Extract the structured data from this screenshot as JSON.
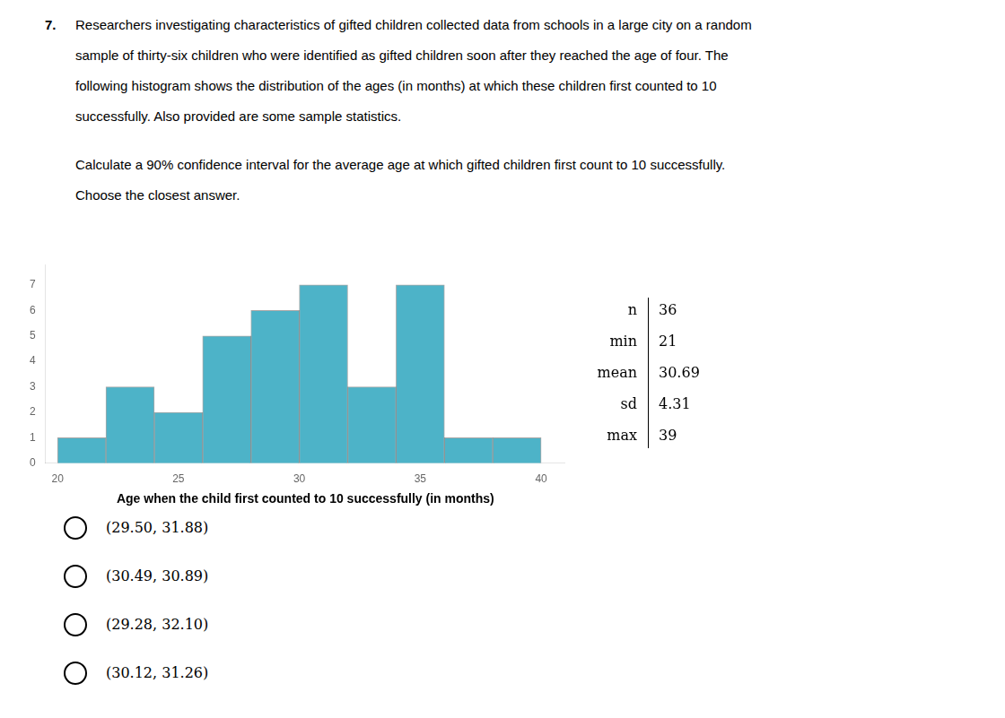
{
  "chart_data": {
    "type": "histogram",
    "question_number": "7.",
    "question_text": [
      "Researchers investigating characteristics of gifted children collected data from schools in a large city on a random",
      "sample of thirty-six children who were identified as gifted children soon after they reached the age of four. The",
      "following histogram shows the distribution of the ages (in months) at which these children first counted to 10",
      "successfully. Also provided are some sample statistics."
    ],
    "sub_question": "Calculate a 90% confidence interval for the average age at which gifted children first count to 10 successfully.",
    "sub_question2": "Choose the closest answer.",
    "bins": [
      20,
      22,
      24,
      26,
      28,
      30,
      32,
      34,
      36,
      38,
      40
    ],
    "values": [
      1,
      3,
      2,
      5,
      6,
      7,
      3,
      7,
      1,
      1
    ],
    "color": "#4db3c8",
    "xlabel": "Age when the child first counted to 10 successfully (in months)",
    "xlim": [
      19.5,
      41
    ],
    "xticks": [
      20,
      25,
      30,
      35,
      40
    ],
    "ylim": [
      0,
      7.8
    ],
    "yticks": [
      0,
      1,
      2,
      3,
      4,
      5,
      6,
      7
    ],
    "grid": false,
    "stats": {
      "labels": [
        "n",
        "min",
        "mean",
        "sd",
        "max"
      ],
      "values": [
        "36",
        "21",
        "30.69",
        "4.31",
        "39"
      ]
    },
    "choices": [
      "(29.50, 31.88)",
      "(30.49, 30.89)",
      "(29.28, 32.10)",
      "(30.12, 31.26)"
    ]
  }
}
